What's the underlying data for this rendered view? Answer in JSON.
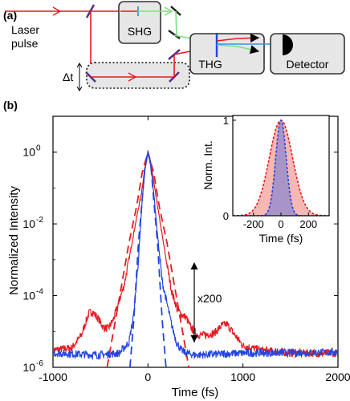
{
  "panel_a": {
    "label": "(a)",
    "laser": "Laser\npulse",
    "shg": "SHG",
    "thg": "THG",
    "detector": "Detector",
    "delay": "Δt"
  },
  "panel_b": {
    "label": "(b)",
    "annotation": "x200"
  },
  "chart_data": [
    {
      "type": "line",
      "xlabel": "Time (fs)",
      "ylabel": "Normalized  Intensity",
      "xlim": [
        -1000,
        2000
      ],
      "xticks": [
        "-1000",
        "0",
        "1000",
        "2000"
      ],
      "ylim_log10": [
        -6,
        1
      ],
      "yticks": [
        "10⁶-6",
        "10-4",
        "10-2",
        "100"
      ],
      "ytick_exponents": [
        "0",
        "-2",
        "-4",
        "-6"
      ],
      "scale": "log",
      "grid": false,
      "colors": {
        "red": "#e8191f",
        "blue": "#2345e0"
      },
      "series": [
        {
          "style": "solid",
          "color": "red",
          "x": [
            -1000,
            -800,
            -700,
            -650,
            -620,
            -580,
            -520,
            -470,
            -420,
            -370,
            -320,
            -250,
            -180,
            -120,
            -70,
            -30,
            0,
            30,
            70,
            120,
            180,
            250,
            310,
            350,
            400,
            450,
            520,
            600,
            700,
            780,
            830,
            900,
            1000,
            1200,
            1500,
            2000
          ],
          "y": [
            3e-06,
            3.5e-06,
            8e-06,
            2e-05,
            3.3e-05,
            3.5e-05,
            2.2e-05,
            1.3e-05,
            1.2e-05,
            2e-05,
            5e-05,
            0.0002,
            0.002,
            0.015,
            0.07,
            0.4,
            1.0,
            0.5,
            0.1,
            0.015,
            0.0015,
            0.00013,
            4e-05,
            3e-05,
            2.5e-05,
            1.3e-05,
            8e-06,
            8e-06,
            9e-06,
            1.5e-05,
            1.6e-05,
            9e-06,
            4e-06,
            3e-06,
            2.5e-06,
            2.5e-06
          ]
        },
        {
          "style": "dashed",
          "color": "red",
          "x": [
            -430,
            -350,
            -280,
            -200,
            -120,
            -60,
            0,
            60,
            120,
            200,
            280,
            350,
            430
          ],
          "y": [
            1e-06,
            1.6e-05,
            0.00018,
            0.003,
            0.03,
            0.27,
            1.0,
            0.27,
            0.03,
            0.003,
            0.00018,
            1.6e-05,
            1e-06
          ]
        },
        {
          "style": "solid",
          "color": "blue",
          "x": [
            -1000,
            -500,
            -300,
            -200,
            -150,
            -100,
            -60,
            -30,
            0,
            30,
            60,
            100,
            150,
            200,
            250,
            300,
            350,
            400,
            500,
            1000,
            2000
          ],
          "y": [
            2.5e-06,
            2.2e-06,
            2.5e-06,
            5e-06,
            3e-05,
            0.001,
            0.05,
            0.35,
            1.0,
            0.4,
            0.08,
            0.005,
            0.00025,
            6e-05,
            1.5e-05,
            5e-06,
            3e-06,
            2.5e-06,
            2.2e-06,
            2.5e-06,
            2.6e-06
          ]
        },
        {
          "style": "dashed",
          "color": "blue",
          "x": [
            -190,
            -150,
            -100,
            -60,
            -30,
            0,
            30,
            60,
            100,
            150,
            190
          ],
          "y": [
            1e-06,
            2e-05,
            0.003,
            0.05,
            0.45,
            1.0,
            0.45,
            0.05,
            0.003,
            2e-05,
            1e-06
          ]
        }
      ]
    },
    {
      "type": "area",
      "xlabel": "Time (fs)",
      "ylabel": "Norm. Int.",
      "xlim": [
        -350,
        350
      ],
      "ylim": [
        0,
        1.05
      ],
      "xticks": [
        "-200",
        "0",
        "200"
      ],
      "yticks": [
        "0",
        "1"
      ],
      "gaussians": [
        {
          "color": "red",
          "fwhm_fs": 200
        },
        {
          "color": "blue",
          "fwhm_fs": 90
        }
      ]
    }
  ]
}
